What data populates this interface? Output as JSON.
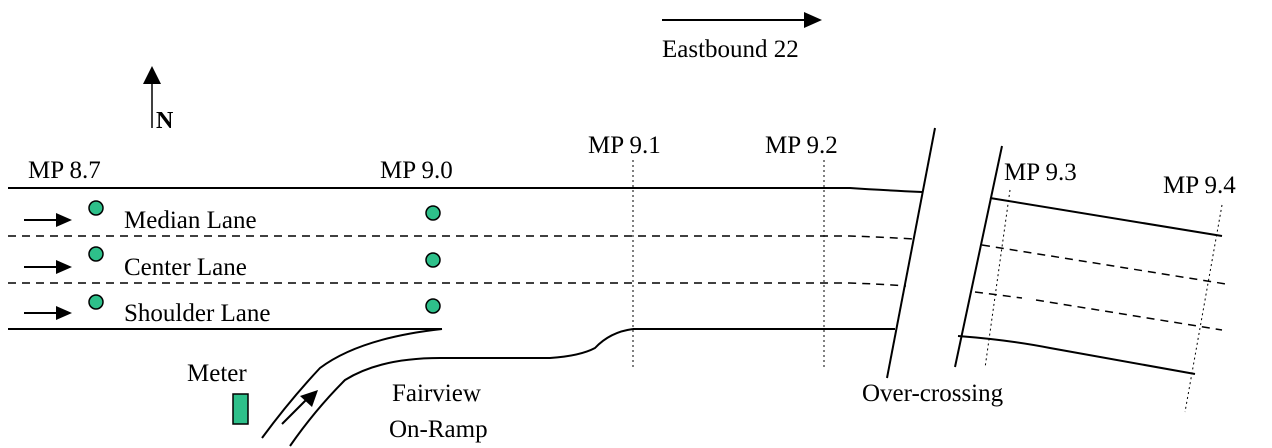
{
  "direction_label": "Eastbound 22",
  "north_label": "N",
  "mileposts": [
    "MP 8.7",
    "MP 9.0",
    "MP 9.1",
    "MP 9.2",
    "MP 9.3",
    "MP 9.4"
  ],
  "lanes": [
    "Median Lane",
    "Center Lane",
    "Shoulder Lane"
  ],
  "meter_label": "Meter",
  "ramp_label_line1": "Fairview",
  "ramp_label_line2": "On-Ramp",
  "overcrossing_label": "Over-crossing",
  "colors": {
    "detector": "#2ec08a",
    "line": "#000000"
  }
}
